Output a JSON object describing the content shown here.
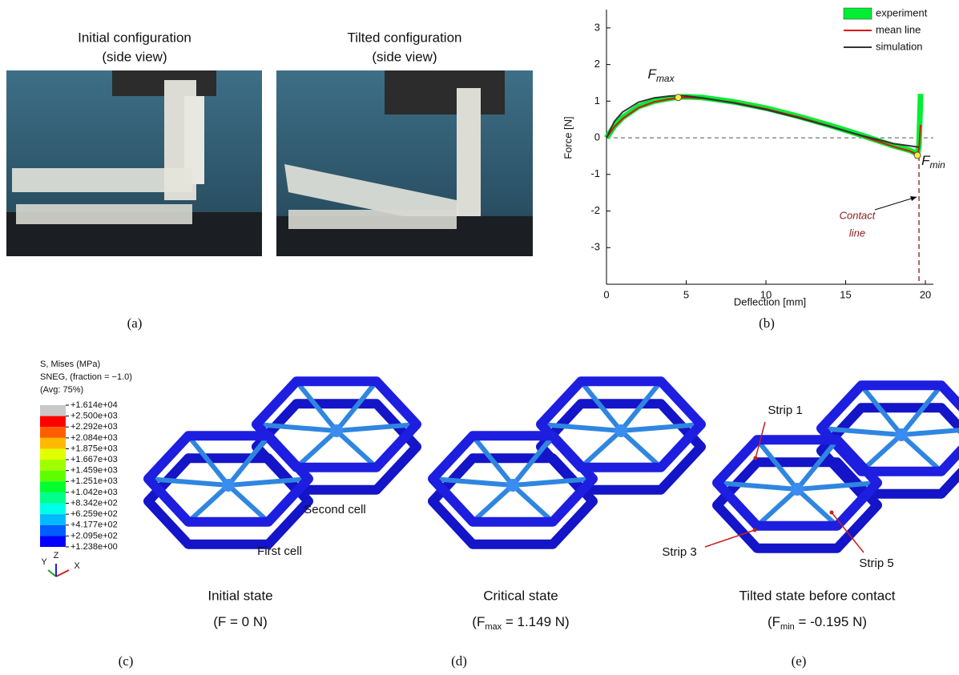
{
  "photos": [
    {
      "title": "Initial configuration",
      "subtitle": "(side view)"
    },
    {
      "title": "Tilted configuration",
      "subtitle": "(side view)"
    }
  ],
  "captions": [
    "(a)",
    "(b)",
    "(c)",
    "(d)",
    "(e)"
  ],
  "chart_data": {
    "type": "line",
    "x_label": "Deflection [mm]",
    "y_label": "Force [N]",
    "x": [
      0,
      0.5,
      1,
      2,
      3,
      4,
      4.5,
      5,
      6,
      8,
      10,
      12,
      14,
      16,
      18,
      19,
      19.5,
      19.6,
      19.7
    ],
    "series": [
      {
        "name": "experiment",
        "color": "#00ee33",
        "values": [
          0,
          0.32,
          0.55,
          0.85,
          1.0,
          1.08,
          1.11,
          1.12,
          1.1,
          0.98,
          0.81,
          0.59,
          0.34,
          0.07,
          -0.22,
          -0.34,
          -0.44,
          -0.2,
          1.2
        ]
      },
      {
        "name": "mean line",
        "color": "#dd1111",
        "values": [
          0,
          0.3,
          0.52,
          0.82,
          0.98,
          1.06,
          1.09,
          1.1,
          1.08,
          0.96,
          0.79,
          0.57,
          0.32,
          0.05,
          -0.24,
          -0.36,
          -0.46,
          -0.3,
          0.35
        ]
      },
      {
        "name": "simulation",
        "color": "#333333",
        "values": [
          0,
          0.45,
          0.7,
          0.97,
          1.09,
          1.14,
          1.15,
          1.14,
          1.09,
          0.95,
          0.77,
          0.55,
          0.31,
          0.06,
          -0.16,
          -0.22,
          -0.25,
          -0.26,
          null
        ]
      }
    ],
    "xlim": [
      0,
      20.5
    ],
    "ylim": [
      -4,
      3.5
    ],
    "xticks": [
      0,
      5,
      10,
      15,
      20
    ],
    "yticks": [
      -3,
      -2,
      -1,
      0,
      1,
      2,
      3
    ],
    "markers": [
      {
        "label": "F",
        "sub": "max",
        "x": 4.5,
        "y": 1.1
      },
      {
        "label": "F",
        "sub": "min",
        "x": 19.5,
        "y": -0.48
      }
    ],
    "contact_line": {
      "x": 19.6,
      "label": [
        "Contact",
        "line"
      ],
      "color": "#8b1a1a"
    },
    "legend": "top-right"
  },
  "stress_legend": {
    "header": [
      "S, Mises  (MPa)",
      "SNEG, (fraction = −1.0)",
      "(Avg: 75%)"
    ],
    "labels": [
      "+1.614e+04",
      "+2.500e+03",
      "+2.292e+03",
      "+2.084e+03",
      "+1.875e+03",
      "+1.667e+03",
      "+1.459e+03",
      "+1.251e+03",
      "+1.042e+03",
      "+8.342e+02",
      "+6.259e+02",
      "+4.177e+02",
      "+2.095e+02",
      "+1.238e+00"
    ],
    "colors": [
      "#c8c8c8",
      "#ff0000",
      "#ff5d00",
      "#ffb900",
      "#e1ff00",
      "#a0ff00",
      "#5dff00",
      "#00ff2e",
      "#00ff8b",
      "#00ffe8",
      "#00b9ff",
      "#005dff",
      "#0000ff"
    ]
  },
  "axes_triad": [
    "Y",
    "Z",
    "X"
  ],
  "panels": [
    {
      "labels": [
        "Second cell",
        "First cell"
      ],
      "state": "Initial state",
      "force": {
        "prefix": "(F = 0 N)"
      }
    },
    {
      "labels": [],
      "state": "Critical state",
      "force": {
        "prefix": "(F",
        "sub": "max",
        "suffix": " = 1.149 N)"
      }
    },
    {
      "labels": [
        "Strip 1",
        "Strip 3",
        "Strip 5"
      ],
      "state": "Tilted state before contact",
      "force": {
        "prefix": "(F",
        "sub": "min",
        "suffix": " = -0.195 N)"
      }
    }
  ]
}
